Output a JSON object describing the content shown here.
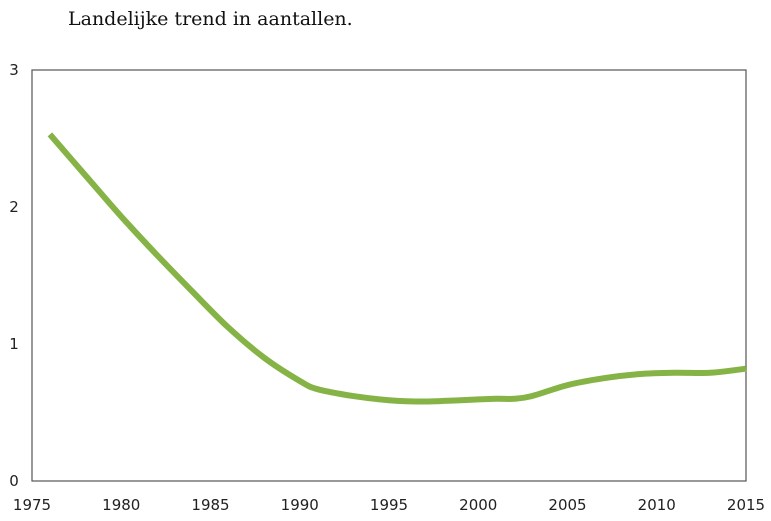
{
  "chart_data": {
    "type": "line",
    "title": "Landelijke trend in aantallen.",
    "xlabel": "",
    "ylabel": "",
    "xlim": [
      1975,
      2015
    ],
    "ylim": [
      0,
      3
    ],
    "xticks": [
      1975,
      1980,
      1985,
      1990,
      1995,
      2000,
      2005,
      2010,
      2015
    ],
    "yticks": [
      0,
      1,
      2,
      3
    ],
    "grid": false,
    "legend": "none",
    "series": [
      {
        "color": "#86b346",
        "x": [
          1976,
          1978,
          1980,
          1982,
          1984,
          1986,
          1988,
          1990,
          1991,
          1993,
          1995,
          1997,
          1999,
          2001,
          2002,
          2003,
          2005,
          2007,
          2009,
          2011,
          2013,
          2015
        ],
        "values": [
          2.53,
          2.23,
          1.93,
          1.65,
          1.38,
          1.12,
          0.9,
          0.73,
          0.67,
          0.62,
          0.59,
          0.58,
          0.59,
          0.6,
          0.6,
          0.62,
          0.7,
          0.75,
          0.78,
          0.79,
          0.79,
          0.82
        ]
      }
    ]
  }
}
